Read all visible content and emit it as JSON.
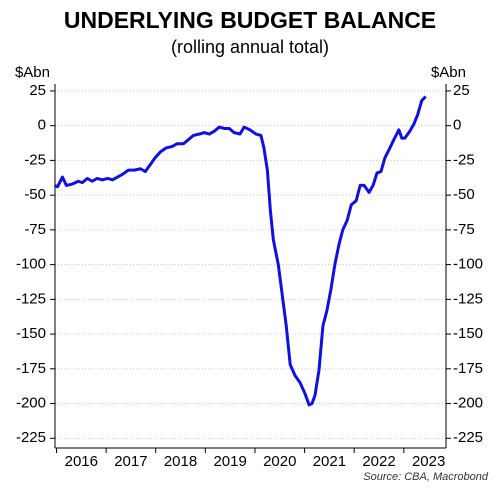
{
  "chart_data": {
    "type": "line",
    "title": "UNDERLYING BUDGET BALANCE",
    "subtitle": "(rolling annual total)",
    "y_label": "$Abn",
    "y2_label": "$Abn",
    "source": "Source: CBA, Macrobond",
    "xlim": [
      2015.97,
      2023.85
    ],
    "xticks": [
      {
        "value": 2016.5,
        "label": "2016"
      },
      {
        "value": 2017.5,
        "label": "2017"
      },
      {
        "value": 2018.5,
        "label": "2018"
      },
      {
        "value": 2019.5,
        "label": "2019"
      },
      {
        "value": 2020.5,
        "label": "2020"
      },
      {
        "value": 2021.5,
        "label": "2021"
      },
      {
        "value": 2022.5,
        "label": "2022"
      },
      {
        "value": 2023.5,
        "label": "2023"
      }
    ],
    "xminorticks": [
      2016,
      2017,
      2018,
      2019,
      2020,
      2021,
      2022,
      2023
    ],
    "ylim": [
      -232,
      30
    ],
    "yticks": [
      25,
      0,
      -25,
      -50,
      -75,
      -100,
      -125,
      -150,
      -175,
      -200,
      -225
    ],
    "y2lim": [
      -232,
      30
    ],
    "y2ticks": [
      25,
      0,
      -25,
      -50,
      -75,
      -100,
      -125,
      -150,
      -175,
      -200,
      -225
    ],
    "grid": true,
    "x": [
      2015.96,
      2016.02,
      2016.12,
      2016.2,
      2016.32,
      2016.44,
      2016.52,
      2016.62,
      2016.72,
      2016.82,
      2016.92,
      2017.03,
      2017.13,
      2017.23,
      2017.33,
      2017.45,
      2017.57,
      2017.69,
      2017.79,
      2017.89,
      2017.99,
      2018.09,
      2018.21,
      2018.33,
      2018.43,
      2018.56,
      2018.66,
      2018.76,
      2018.88,
      2018.98,
      2019.08,
      2019.18,
      2019.28,
      2019.38,
      2019.48,
      2019.58,
      2019.7,
      2019.78,
      2019.9,
      2020.02,
      2020.12,
      2020.18,
      2020.25,
      2020.31,
      2020.37,
      2020.47,
      2020.55,
      2020.63,
      2020.71,
      2020.81,
      2020.91,
      2021.01,
      2021.09,
      2021.15,
      2021.21,
      2021.29,
      2021.37,
      2021.45,
      2021.53,
      2021.61,
      2021.69,
      2021.77,
      2021.86,
      2021.94,
      2022.04,
      2022.12,
      2022.2,
      2022.3,
      2022.38,
      2022.46,
      2022.54,
      2022.62,
      2022.72,
      2022.8,
      2022.9,
      2022.96,
      2023.02,
      2023.12,
      2023.2,
      2023.28,
      2023.36,
      2023.44
    ],
    "series": [
      {
        "name": "Underlying budget balance",
        "color": "#1010e0",
        "values": [
          -43,
          -44,
          -37,
          -43,
          -42,
          -40,
          -41,
          -38,
          -40,
          -38,
          -39,
          -38,
          -39,
          -37,
          -35,
          -32,
          -32,
          -31,
          -33,
          -28,
          -23,
          -19,
          -16,
          -15,
          -13,
          -13,
          -10,
          -7,
          -6,
          -5,
          -6,
          -4,
          -1,
          -2,
          -2,
          -5,
          -6,
          -1,
          -3,
          -6,
          -7,
          -16,
          -32,
          -61,
          -82,
          -100,
          -122,
          -144,
          -172,
          -180,
          -185,
          -193,
          -201,
          -200,
          -194,
          -176,
          -144,
          -133,
          -118,
          -100,
          -86,
          -75,
          -68,
          -57,
          -54,
          -43,
          -43,
          -48,
          -43,
          -34,
          -33,
          -23,
          -16,
          -10,
          -3,
          -9,
          -9,
          -4,
          1,
          8,
          18,
          21
        ]
      }
    ]
  }
}
